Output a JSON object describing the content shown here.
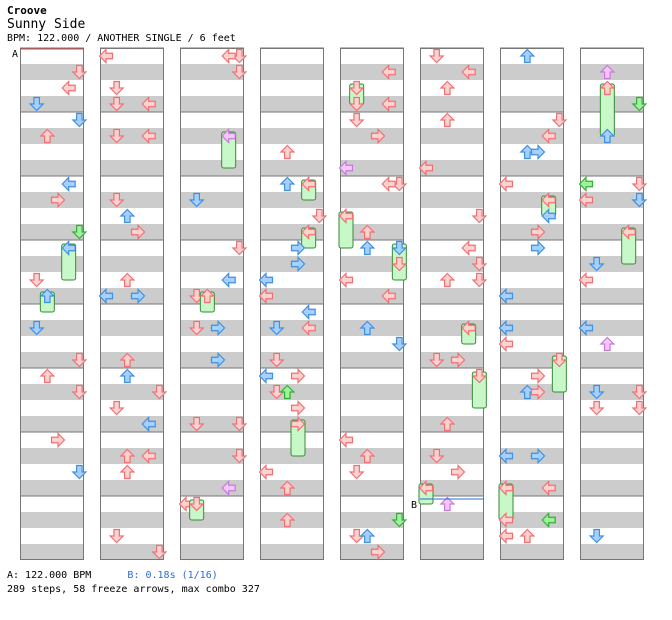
{
  "header": {
    "game": "Croove",
    "title": "Sunny Side",
    "info": "BPM: 122.000 / ANOTHER SINGLE / 6 feet"
  },
  "markers": {
    "a": "A",
    "b": "B"
  },
  "footer": {
    "bpm_label": "A: 122.000 BPM",
    "stop_label": "B: 0.18s (1/16)",
    "stats": "289 steps, 58 freeze arrows, max combo 327"
  },
  "colors": {
    "red": "#f07070",
    "red_fill": "#ffd0d0",
    "blue": "#3d8fe0",
    "blue_fill": "#a8d0ff",
    "pink": "#c878d8",
    "pink_fill": "#f4c8ff",
    "green": "#30b030",
    "green_fill": "#a0f0a0",
    "freeze": "#c8f7c8",
    "freeze_edge": "#3a8a3a",
    "stripe": "#cccccc"
  },
  "columns": 8,
  "measures_per_column": 8
}
